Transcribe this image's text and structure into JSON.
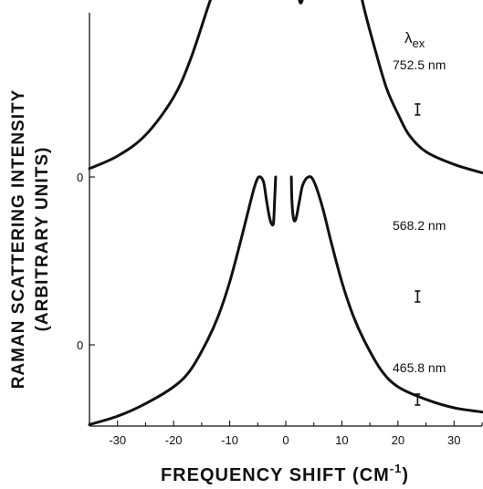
{
  "chart_data": {
    "type": "line",
    "title": "",
    "xlabel": "FREQUENCY SHIFT (CM",
    "xlabel_sup": "-1",
    "xlabel_end": ")",
    "ylabel_line1": "RAMAN SCATTERING INTENSITY",
    "ylabel_line2": "(ARBITRARY UNITS)",
    "legend_title": "λ",
    "legend_title_sub": "ex",
    "xlim": [
      -35,
      35
    ],
    "xticks": [
      "-30",
      "-20",
      "-10",
      "0",
      "10",
      "20",
      "30"
    ],
    "xtick_values": [
      -30,
      -20,
      -10,
      0,
      10,
      20,
      30
    ],
    "zero_markers": [
      "0",
      "0"
    ],
    "grid": false,
    "series": [
      {
        "name": "465.8 nm",
        "offset": 2,
        "error_bar_x": 23.5,
        "left": [
          [
            -35,
            0.9
          ],
          [
            -30,
            1.1
          ],
          [
            -25,
            1.5
          ],
          [
            -20,
            2.2
          ],
          [
            -17,
            2.8
          ],
          [
            -14,
            3.5
          ],
          [
            -12,
            3.9
          ],
          [
            -11,
            4.0
          ],
          [
            -10,
            3.9
          ],
          [
            -8,
            3.6
          ],
          [
            -6,
            3.2
          ],
          [
            -4.5,
            2.8
          ],
          [
            -3.5,
            2.5
          ],
          [
            -2.8,
            2.4
          ],
          [
            -2.5,
            2.6
          ],
          [
            -2.3,
            3.2
          ],
          [
            -2.2,
            4.0
          ]
        ],
        "right": [
          [
            2.5,
            4.1
          ],
          [
            2.6,
            3.2
          ],
          [
            2.9,
            2.6
          ],
          [
            3.5,
            2.4
          ],
          [
            5,
            2.7
          ],
          [
            7,
            3.3
          ],
          [
            9,
            3.8
          ],
          [
            10.5,
            4.2
          ],
          [
            11.5,
            4.35
          ],
          [
            12.5,
            4.3
          ],
          [
            14,
            3.9
          ],
          [
            16,
            3.3
          ],
          [
            18,
            2.8
          ],
          [
            20,
            2.3
          ],
          [
            23,
            1.9
          ],
          [
            26,
            1.5
          ],
          [
            30,
            1.1
          ],
          [
            35,
            0.9
          ]
        ]
      },
      {
        "name": "568.2 nm",
        "offset": 1,
        "error_bar_x": 23.5,
        "left": [
          [
            -35,
            0.1
          ],
          [
            -30,
            0.25
          ],
          [
            -25,
            0.5
          ],
          [
            -20,
            0.95
          ],
          [
            -17,
            1.4
          ],
          [
            -14,
            2.0
          ],
          [
            -12,
            2.4
          ],
          [
            -10,
            2.9
          ],
          [
            -8.5,
            3.3
          ],
          [
            -7,
            3.6
          ],
          [
            -6.5,
            3.65
          ],
          [
            -5.5,
            3.6
          ],
          [
            -4.5,
            3.2
          ],
          [
            -3.5,
            2.7
          ],
          [
            -2.8,
            2.4
          ],
          [
            -2.4,
            2.35
          ],
          [
            -2.1,
            2.7
          ],
          [
            -1.9,
            3.4
          ],
          [
            -1.7,
            3.7
          ]
        ],
        "middle": [
          [
            -0.6,
            3.7
          ],
          [
            -0.6,
            3.0
          ],
          [
            -0.4,
            2.6
          ],
          [
            -0.2,
            2.4
          ]
        ],
        "right": [
          [
            1.5,
            3.75
          ],
          [
            1.6,
            3.0
          ],
          [
            1.9,
            2.5
          ],
          [
            2.3,
            2.15
          ],
          [
            2.9,
            2.1
          ],
          [
            4,
            2.5
          ],
          [
            5.5,
            3.1
          ],
          [
            6.5,
            3.4
          ],
          [
            7.5,
            3.6
          ],
          [
            8.5,
            3.55
          ],
          [
            10,
            3.2
          ],
          [
            12,
            2.6
          ],
          [
            14,
            2.0
          ],
          [
            16,
            1.5
          ],
          [
            18,
            1.05
          ],
          [
            20,
            0.75
          ],
          [
            22,
            0.5
          ],
          [
            25,
            0.3
          ],
          [
            30,
            0.15
          ],
          [
            35,
            0.05
          ]
        ]
      },
      {
        "name": "752.5 nm",
        "offset": 0,
        "error_bar_x": 23.5,
        "left": [
          [
            -35,
            -0.95
          ],
          [
            -30,
            -0.85
          ],
          [
            -25,
            -0.7
          ],
          [
            -20,
            -0.5
          ],
          [
            -17,
            -0.3
          ],
          [
            -14,
            0.05
          ],
          [
            -12,
            0.35
          ],
          [
            -10,
            0.75
          ],
          [
            -8,
            1.25
          ],
          [
            -6.5,
            1.65
          ],
          [
            -5.5,
            1.9
          ],
          [
            -4.8,
            2.0
          ],
          [
            -4,
            1.95
          ],
          [
            -3.5,
            1.75
          ],
          [
            -3,
            1.55
          ],
          [
            -2.6,
            1.45
          ],
          [
            -2.2,
            1.45
          ],
          [
            -2.0,
            1.7
          ],
          [
            -1.8,
            2.0
          ]
        ],
        "right": [
          [
            1.0,
            2.0
          ],
          [
            1.1,
            1.7
          ],
          [
            1.4,
            1.5
          ],
          [
            1.8,
            1.5
          ],
          [
            2.4,
            1.7
          ],
          [
            3,
            1.9
          ],
          [
            4,
            2.0
          ],
          [
            5,
            1.95
          ],
          [
            6.5,
            1.65
          ],
          [
            8,
            1.25
          ],
          [
            10,
            0.75
          ],
          [
            12,
            0.35
          ],
          [
            14,
            0.05
          ],
          [
            17,
            -0.3
          ],
          [
            20,
            -0.5
          ],
          [
            25,
            -0.65
          ],
          [
            30,
            -0.75
          ],
          [
            35,
            -0.8
          ]
        ]
      }
    ]
  }
}
